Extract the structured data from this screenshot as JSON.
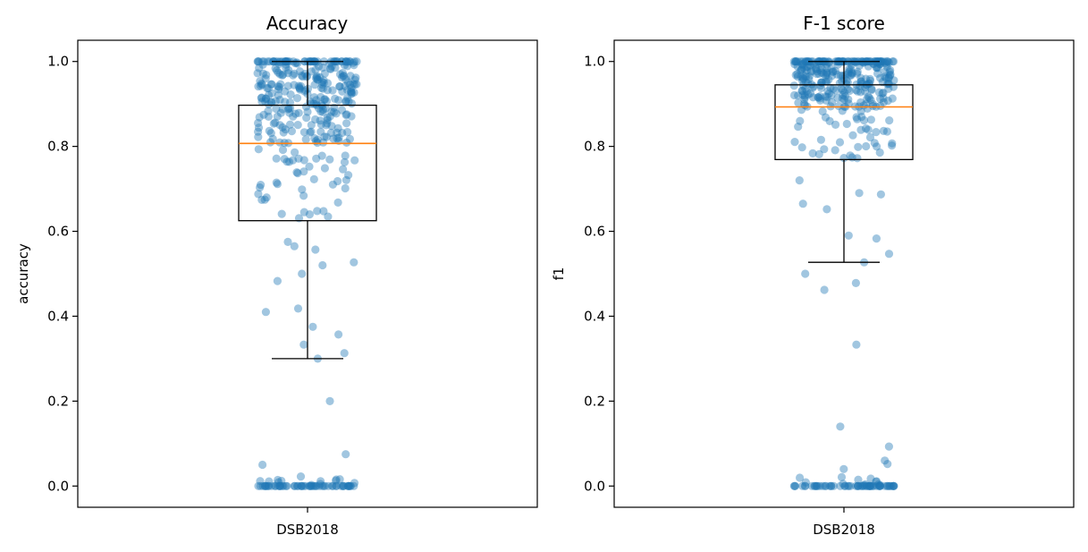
{
  "chart_data": [
    {
      "type": "box",
      "title": "Accuracy",
      "xlabel": "",
      "ylabel": "accuracy",
      "categories": [
        "DSB2018"
      ],
      "ylim": [
        -0.05,
        1.05
      ],
      "yticks": [
        "0.0",
        "0.2",
        "0.4",
        "0.6",
        "0.8",
        "1.0"
      ],
      "box": {
        "whisker_low": 0.3,
        "q1": 0.625,
        "median": 0.807,
        "q3": 0.897,
        "whisker_high": 1.0
      },
      "colors": {
        "points": "#1f77b4",
        "median": "#ff7f0e",
        "box": "#000000"
      },
      "points_visible_samples": [
        0.2,
        0.075,
        0.05,
        0.3,
        0.333,
        0.357,
        0.313,
        0.375,
        0.41,
        0.418,
        0.483,
        0.5,
        0.52,
        0.527,
        0.557,
        0.565,
        0.575
      ]
    },
    {
      "type": "box",
      "title": "F-1 score",
      "xlabel": "",
      "ylabel": "f1",
      "categories": [
        "DSB2018"
      ],
      "ylim": [
        -0.05,
        1.05
      ],
      "yticks": [
        "0.0",
        "0.2",
        "0.4",
        "0.6",
        "0.8",
        "1.0"
      ],
      "box": {
        "whisker_low": 0.527,
        "q1": 0.769,
        "median": 0.893,
        "q3": 0.945,
        "whisker_high": 1.0
      },
      "colors": {
        "points": "#1f77b4",
        "median": "#ff7f0e",
        "box": "#000000"
      },
      "points_visible_samples": [
        0.14,
        0.093,
        0.06,
        0.052,
        0.04,
        0.333,
        0.462,
        0.478,
        0.5,
        0.527,
        0.547,
        0.583,
        0.59,
        0.652,
        0.665,
        0.687,
        0.69,
        0.72
      ]
    }
  ]
}
